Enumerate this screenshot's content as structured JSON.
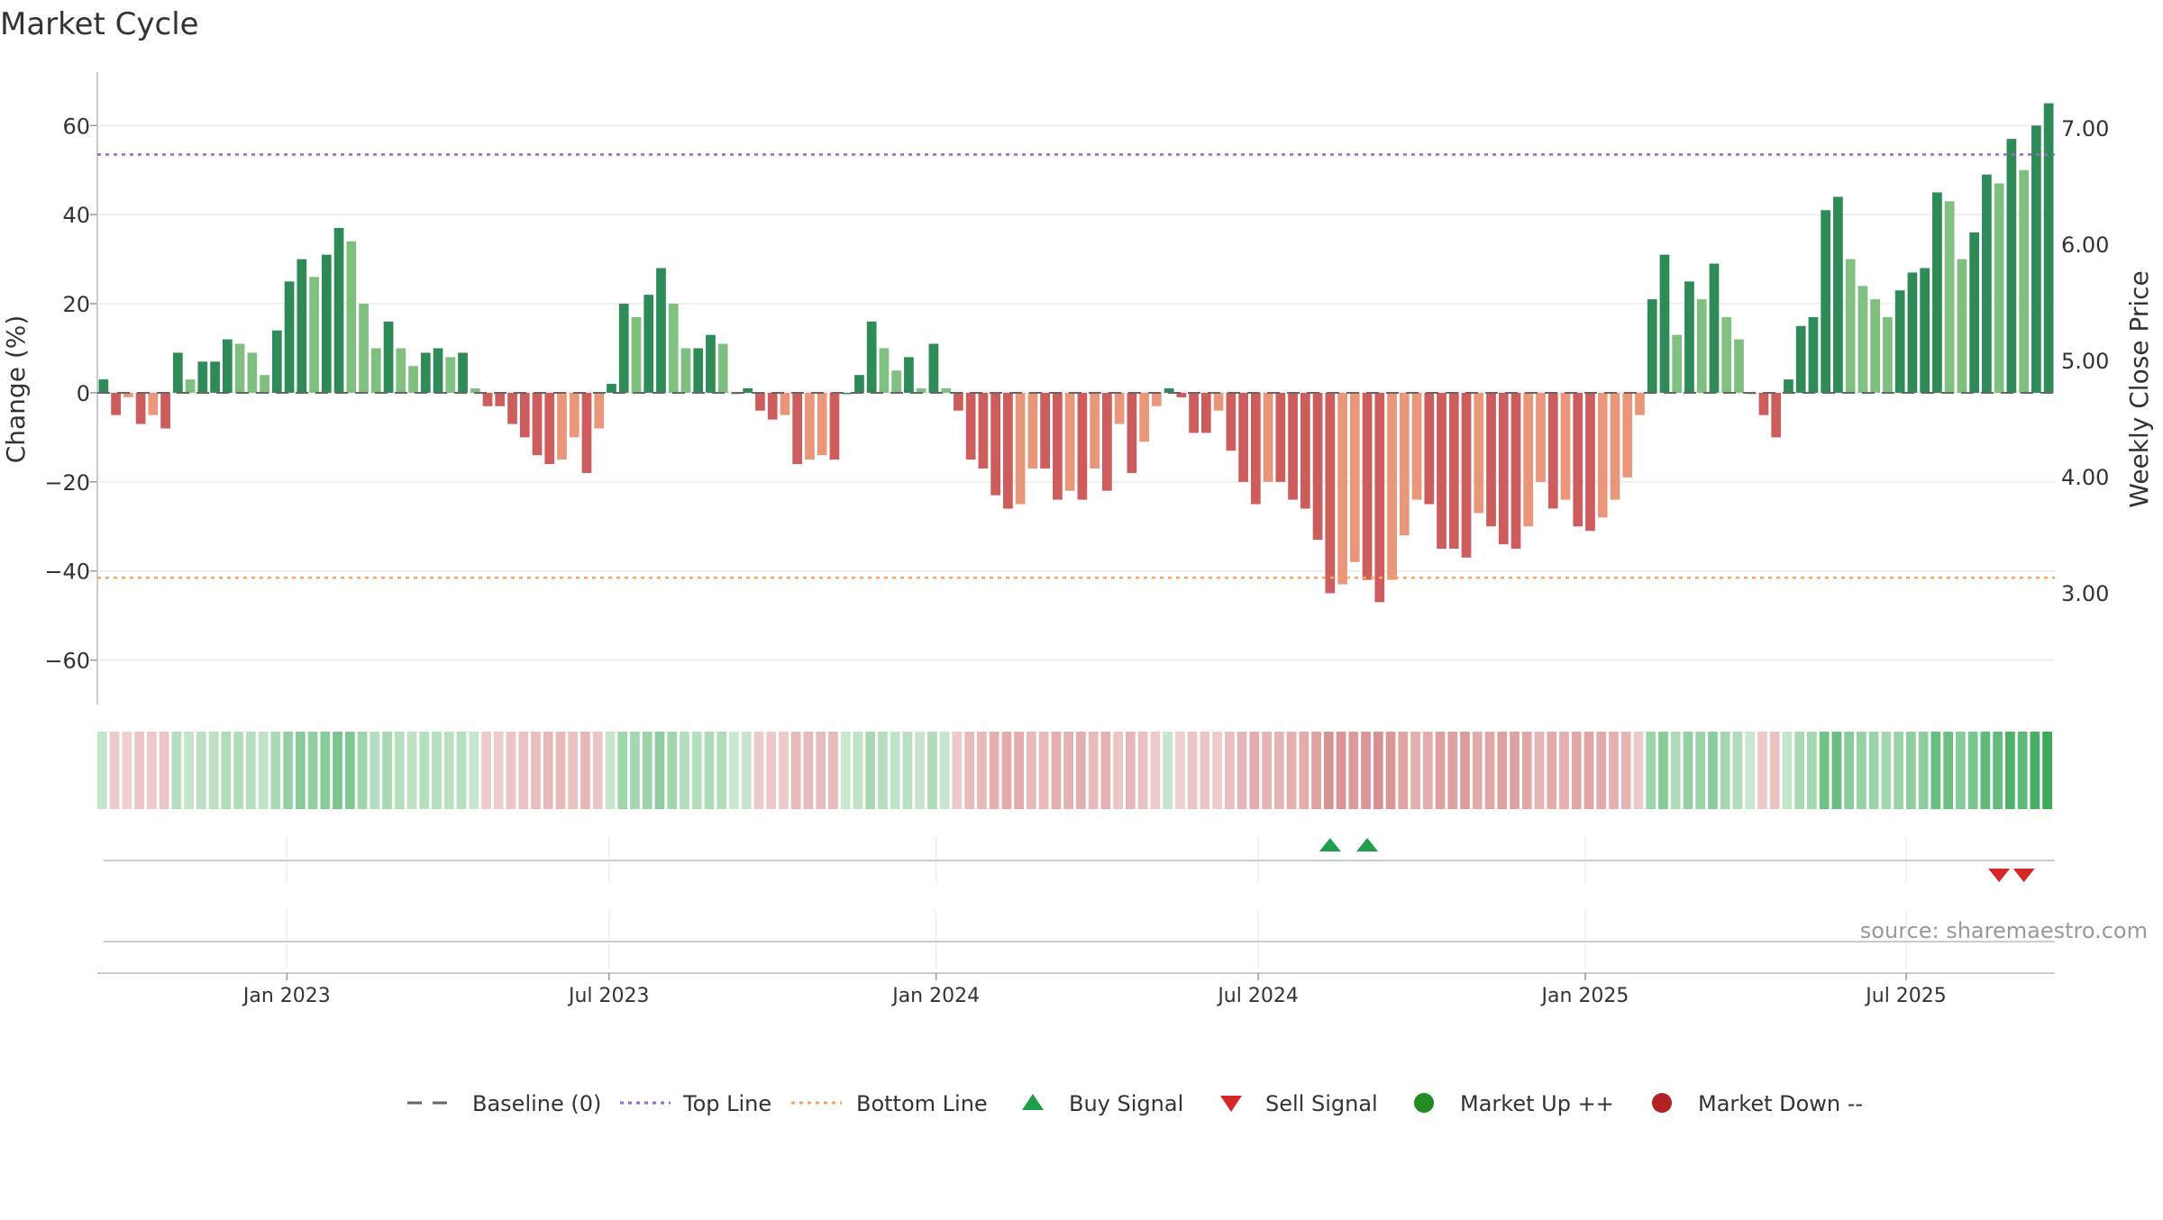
{
  "chart_data": {
    "type": "bar",
    "title": "Market Cycle",
    "source": "source: sharemaestro.com",
    "y_left": {
      "label": "Change (%)",
      "range": [
        -70,
        72
      ],
      "ticks": [
        60,
        40,
        20,
        0,
        -20,
        -40,
        -60
      ],
      "tick_labels": [
        "60",
        "40",
        "20",
        "0",
        "−20",
        "−40",
        "−60"
      ]
    },
    "y_right": {
      "label": "Weekly Close Price",
      "ticks": [
        7.0,
        6.0,
        5.0,
        4.0,
        3.0
      ],
      "tick_labels": [
        "7.00",
        "6.00",
        "5.00",
        "4.00",
        "3.00"
      ]
    },
    "x_axis": {
      "tick_labels": [
        "Jan 2023",
        "Jul 2023",
        "Jan 2024",
        "Jul 2024",
        "Jan 2025",
        "Jul 2025"
      ],
      "tick_weeks": [
        15.3,
        41.3,
        67.7,
        93.7,
        120.1,
        146.0
      ]
    },
    "reference_lines": {
      "top_line": 53.5,
      "bottom_line": -41.5,
      "baseline": 0
    },
    "colors": {
      "up_dark": "#2e8b57",
      "up_light": "#7fbf7f",
      "down_dark": "#cd5c5c",
      "down_light": "#e9967a",
      "top_line": "#9966cc",
      "bottom_line": "#f4a460",
      "buy": "#1e9e4a",
      "sell": "#d62728",
      "market_up": "#228b22",
      "market_down": "#b22222"
    },
    "values": [
      3,
      -5,
      -1,
      -7,
      -5,
      -8,
      9,
      3,
      7,
      7,
      12,
      11,
      9,
      4,
      14,
      25,
      30,
      26,
      31,
      37,
      34,
      20,
      10,
      16,
      10,
      6,
      9,
      10,
      8,
      9,
      1,
      -3,
      -3,
      -7,
      -10,
      -14,
      -16,
      -15,
      -10,
      -18,
      -8,
      2,
      20,
      17,
      22,
      28,
      20,
      10,
      10,
      13,
      11,
      0,
      1,
      -4,
      -6,
      -5,
      -16,
      -15,
      -14,
      -15,
      0,
      4,
      16,
      10,
      5,
      8,
      1,
      11,
      1,
      -4,
      -15,
      -17,
      -23,
      -26,
      -25,
      -17,
      -17,
      -24,
      -22,
      -24,
      -17,
      -22,
      -7,
      -18,
      -11,
      -3,
      1,
      -1,
      -9,
      -9,
      -4,
      -13,
      -20,
      -25,
      -20,
      -20,
      -24,
      -26,
      -33,
      -45,
      -43,
      -38,
      -42,
      -47,
      -42,
      -32,
      -24,
      -25,
      -35,
      -35,
      -37,
      -27,
      -30,
      -34,
      -35,
      -30,
      -20,
      -26,
      -24,
      -30,
      -31,
      -28,
      -24,
      -19,
      -5,
      21,
      31,
      13,
      25,
      21,
      29,
      17,
      12,
      0,
      -5,
      -10,
      3,
      15,
      17,
      41,
      44,
      30,
      24,
      21,
      17,
      23,
      27,
      28,
      45,
      43,
      30,
      36,
      49,
      47,
      57,
      50,
      60,
      65
    ],
    "buy_signals_week": [
      99,
      102
    ],
    "sell_signals_week": [
      153,
      155
    ],
    "legend": {
      "position": "bottom",
      "items": [
        {
          "label": "Baseline (0)",
          "marker": "dashed-line",
          "color": "#666666"
        },
        {
          "label": "Top Line",
          "marker": "dotted-line",
          "color": "#9966cc"
        },
        {
          "label": "Bottom Line",
          "marker": "dotted-line",
          "color": "#f4a460"
        },
        {
          "label": "Buy Signal",
          "marker": "triangle-up",
          "color": "#1e9e4a"
        },
        {
          "label": "Sell Signal",
          "marker": "triangle-down",
          "color": "#d62728"
        },
        {
          "label": "Market Up ++",
          "marker": "circle",
          "color": "#228b22"
        },
        {
          "label": "Market Down --",
          "marker": "circle",
          "color": "#b22222"
        }
      ]
    }
  }
}
